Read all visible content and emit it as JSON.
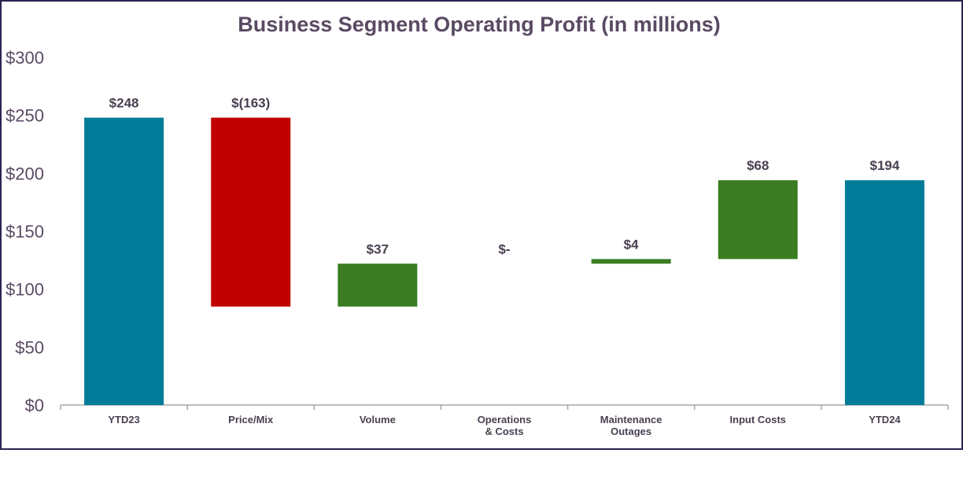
{
  "chart_data": {
    "type": "waterfall",
    "title": "Business Segment Operating Profit (in millions)",
    "categories": [
      [
        "YTD23"
      ],
      [
        "Price/Mix"
      ],
      [
        "Volume"
      ],
      [
        "Operations",
        "& Costs"
      ],
      [
        "Maintenance",
        "Outages"
      ],
      [
        "Input Costs"
      ],
      [
        "YTD24"
      ]
    ],
    "values": [
      248,
      -163,
      37,
      0,
      4,
      68,
      194
    ],
    "kinds": [
      "total",
      "delta",
      "delta",
      "delta",
      "delta",
      "delta",
      "total"
    ],
    "data_labels": [
      "$248",
      "$(163)",
      "$37",
      "$-",
      "$4",
      "$68",
      "$194"
    ],
    "ylim": [
      0,
      300
    ],
    "yticks": [
      0,
      50,
      100,
      150,
      200,
      250,
      300
    ],
    "ytick_labels": [
      "$0",
      "$50",
      "$100",
      "$150",
      "$200",
      "$250",
      "$300"
    ],
    "xlabel": "",
    "ylabel": "",
    "grid": false,
    "legend": "none",
    "colors": {
      "total": "#007c99",
      "increase": "#3a7d22",
      "decrease": "#c00000"
    }
  }
}
